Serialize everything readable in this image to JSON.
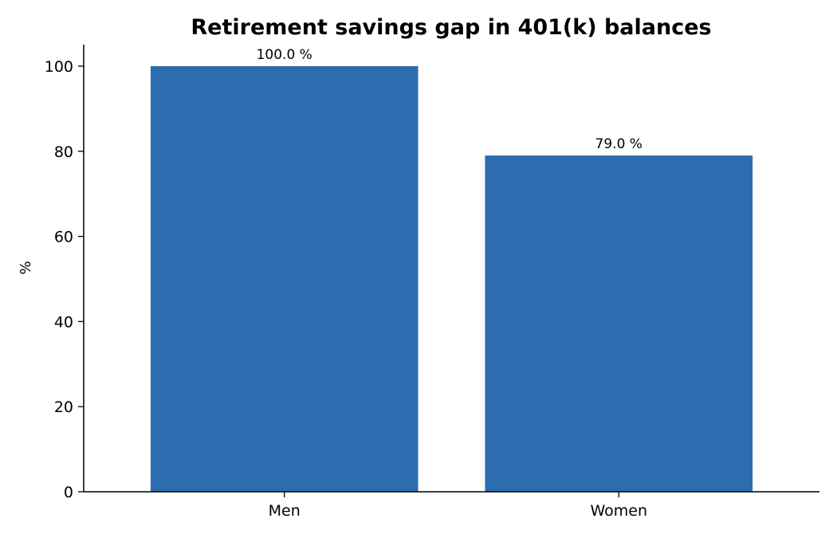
{
  "chart_data": {
    "type": "bar",
    "title": "Retirement savings gap in 401(k) balances",
    "xlabel": "",
    "ylabel": "%",
    "categories": [
      "Men",
      "Women"
    ],
    "values": [
      100.0,
      79.0
    ],
    "data_labels": [
      "100.0 %",
      "79.0 %"
    ],
    "ylim": [
      0,
      105
    ],
    "yticks": [
      0,
      20,
      40,
      60,
      80,
      100
    ],
    "ytick_labels": [
      "0",
      "20",
      "40",
      "60",
      "80",
      "100"
    ],
    "bar_color": "#2c6db0",
    "grid": false,
    "legend": "none"
  }
}
